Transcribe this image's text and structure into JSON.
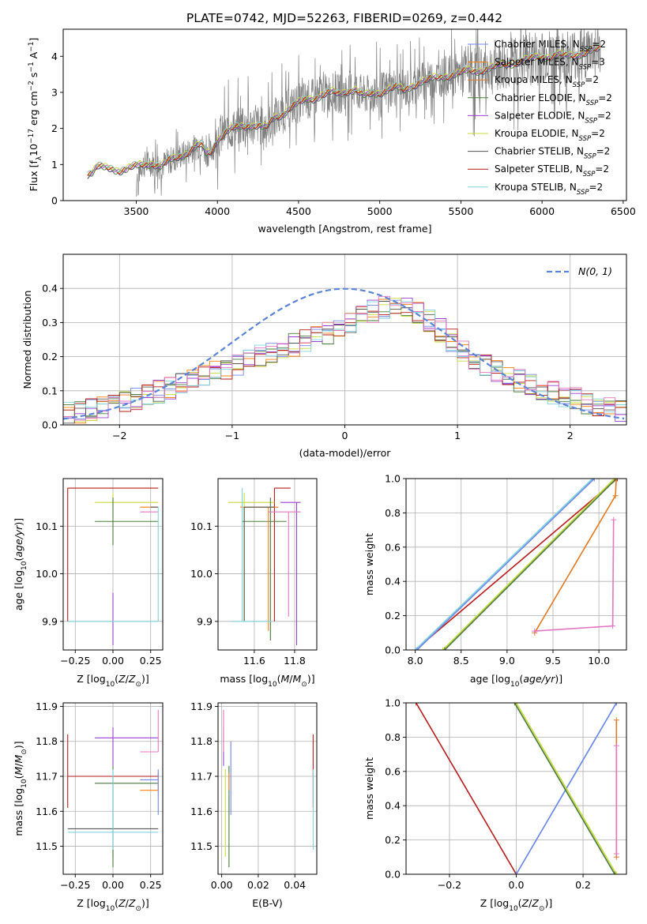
{
  "title": "PLATE=0742, MJD=52263, FIBERID=0269, z=0.442",
  "colors": {
    "c1": "#6f87e8",
    "c2": "#ff7f0e",
    "c3": "#e07a24",
    "c4": "#4a7a3c",
    "c5": "#9b3fcf",
    "c6": "#c8dc3c",
    "c7": "#555555",
    "c8": "#b71c1c",
    "c9": "#7fd4dc",
    "pink": "#e377c2",
    "grey": "#808080",
    "norm": "#5b84d6"
  },
  "chart_data": [
    {
      "id": "spectrum",
      "type": "line",
      "xlabel": "wavelength [Angstrom, rest frame]",
      "ylabel": "Flux [f_λ 10^-17 erg cm^-2 s^-1 A^-1]",
      "xlim": [
        3050,
        6520
      ],
      "ylim": [
        0,
        4.75
      ],
      "xticks": [
        3500,
        4000,
        4500,
        5000,
        5500,
        6000,
        6500
      ],
      "yticks": [
        0,
        1,
        2,
        3,
        4
      ],
      "legend_position": "top-right",
      "legend": [
        {
          "base": "Chabrier MILES, N",
          "sub": "SSP",
          "tail": "=2",
          "color": "#6f87e8"
        },
        {
          "base": "Salpeter MILES, N",
          "sub": "SSP",
          "tail": "=3",
          "color": "#ff7f0e"
        },
        {
          "base": "Kroupa MILES, N",
          "sub": "SSP",
          "tail": "=2",
          "color": "#e07a24"
        },
        {
          "base": "Chabrier ELODIE, N",
          "sub": "SSP",
          "tail": "=2",
          "color": "#4a7a3c"
        },
        {
          "base": "Salpeter ELODIE, N",
          "sub": "SSP",
          "tail": "=2",
          "color": "#9b3fcf"
        },
        {
          "base": "Kroupa ELODIE, N",
          "sub": "SSP",
          "tail": "=2",
          "color": "#c8dc3c"
        },
        {
          "base": "Chabrier STELIB, N",
          "sub": "SSP",
          "tail": "=2",
          "color": "#555555"
        },
        {
          "base": "Salpeter STELIB, N",
          "sub": "SSP",
          "tail": "=2",
          "color": "#b71c1c"
        },
        {
          "base": "Kroupa STELIB, N",
          "sub": "SSP",
          "tail": "=2",
          "color": "#7fd4dc"
        }
      ],
      "model_curve": {
        "x": [
          3200,
          3230,
          3260,
          3300,
          3350,
          3400,
          3450,
          3500,
          3550,
          3600,
          3650,
          3700,
          3750,
          3800,
          3850,
          3900,
          3930,
          3960,
          4000,
          4050,
          4100,
          4150,
          4200,
          4250,
          4300,
          4350,
          4400,
          4450,
          4500,
          4550,
          4600,
          4650,
          4700,
          4750,
          4800,
          4850,
          4900,
          4950,
          5000,
          5050,
          5100,
          5150,
          5200,
          5250,
          5300,
          5350,
          5400,
          5450,
          5500,
          5550,
          5600,
          5650,
          5700,
          5750,
          5800,
          5850,
          5900,
          5950,
          6000,
          6050,
          6100,
          6150,
          6200,
          6250,
          6300,
          6360
        ],
        "y": [
          0.75,
          0.8,
          0.95,
          0.9,
          0.88,
          0.85,
          0.9,
          0.95,
          1.0,
          1.05,
          0.95,
          1.1,
          1.2,
          1.3,
          1.45,
          1.55,
          1.3,
          1.35,
          1.7,
          1.9,
          2.0,
          2.05,
          2.1,
          2.1,
          2.0,
          2.3,
          2.4,
          2.6,
          2.7,
          2.8,
          2.85,
          2.95,
          3.0,
          2.95,
          3.05,
          3.1,
          2.9,
          2.95,
          3.0,
          3.1,
          3.15,
          3.05,
          3.2,
          3.3,
          3.35,
          3.4,
          3.45,
          3.5,
          3.55,
          3.6,
          3.6,
          3.65,
          3.7,
          3.75,
          3.8,
          3.85,
          3.9,
          3.95,
          4.0,
          4.0,
          4.05,
          4.0,
          4.05,
          4.1,
          4.15,
          4.2
        ]
      },
      "data_noise": "grey observed spectrum, 3500–6360 Å, scatter up to ±1.5"
    },
    {
      "id": "residuals",
      "type": "step",
      "xlabel": "(data-model)/error",
      "ylabel": "Normed distribution",
      "xlim": [
        -2.5,
        2.5
      ],
      "ylim": [
        0,
        0.5
      ],
      "xticks": [
        -2,
        -1,
        0,
        1,
        2
      ],
      "yticks": [
        0.0,
        0.1,
        0.2,
        0.3,
        0.4
      ],
      "grid": true,
      "legend_position": "top-right",
      "normal_label": "N(0, 1)",
      "normal_curve": {
        "mean": 0,
        "sigma": 1,
        "color": "#5b84d6",
        "style": "dashed"
      }
    },
    {
      "id": "age_vs_Z",
      "type": "errorbar",
      "xlabel": "Z [log10(Z/Z⊙)]",
      "ylabel": "age  [log10(age/yr)]",
      "xlim": [
        -0.33,
        0.33
      ],
      "ylim": [
        9.84,
        10.2
      ],
      "xticks": [
        -0.25,
        0.0,
        0.25
      ],
      "xtick_labels": [
        "−0.25",
        "0.00",
        "0.25"
      ],
      "yticks": [
        9.9,
        10.0,
        10.1
      ],
      "grid": true,
      "points": [
        {
          "x": -0.3,
          "y": 10.18,
          "xerr": [
            0,
            0.6
          ],
          "yerr": [
            0.28,
            0
          ],
          "color": "#b71c1c"
        },
        {
          "x": 0.0,
          "y": 10.15,
          "xerr": [
            0.12,
            0.3
          ],
          "yerr": [
            0.03,
            0.02
          ],
          "color": "#c8dc3c"
        },
        {
          "x": 0.0,
          "y": 10.11,
          "xerr": [
            0.12,
            0.3
          ],
          "yerr": [
            0.05,
            0.05
          ],
          "color": "#4a7a3c"
        },
        {
          "x": 0.0,
          "y": 9.96,
          "xerr": [
            0,
            0
          ],
          "yerr": [
            0.11,
            0
          ],
          "color": "#9b3fcf"
        },
        {
          "x": 0.3,
          "y": 10.14,
          "xerr": [
            0.12,
            0
          ],
          "yerr": [
            0,
            0
          ],
          "color": "#ff7f0e"
        },
        {
          "x": 0.3,
          "y": 10.13,
          "xerr": [
            0.12,
            0
          ],
          "yerr": [
            0,
            0
          ],
          "color": "#e377c2"
        },
        {
          "x": 0.3,
          "y": 10.14,
          "xerr": [
            0.05,
            0
          ],
          "yerr": [
            0,
            0
          ],
          "color": "#555555"
        },
        {
          "x": 0.3,
          "y": 9.9,
          "xerr": [
            0.6,
            0
          ],
          "yerr": [
            0,
            0.24
          ],
          "color": "#7fd4dc"
        }
      ]
    },
    {
      "id": "age_vs_mass",
      "type": "errorbar",
      "xlabel": "mass [log10(M/M⊙)]",
      "ylabel": "",
      "xlim": [
        11.42,
        11.91
      ],
      "ylim": [
        9.84,
        10.2
      ],
      "xticks": [
        11.6,
        11.8
      ],
      "xtick_labels": [
        "11.6",
        "11.8"
      ],
      "yticks": [
        9.9,
        10.0,
        10.1
      ],
      "grid": true,
      "points": [
        {
          "x": 11.7,
          "y": 10.18,
          "xerr": [
            0,
            0.08
          ],
          "yerr": [
            0.28,
            0
          ],
          "color": "#b71c1c"
        },
        {
          "x": 11.55,
          "y": 10.15,
          "xerr": [
            0.08,
            0.15
          ],
          "yerr": [
            0.25,
            0.02
          ],
          "color": "#c8dc3c"
        },
        {
          "x": 11.68,
          "y": 10.11,
          "xerr": [
            0.14,
            0.08
          ],
          "yerr": [
            0.25,
            0.05
          ],
          "color": "#4a7a3c"
        },
        {
          "x": 11.81,
          "y": 10.15,
          "xerr": [
            0.08,
            0.02
          ],
          "yerr": [
            0.3,
            0
          ],
          "color": "#9b3fcf"
        },
        {
          "x": 11.67,
          "y": 10.14,
          "xerr": [
            0.14,
            0.05
          ],
          "yerr": [
            0.26,
            0
          ],
          "color": "#ff7f0e"
        },
        {
          "x": 11.77,
          "y": 10.13,
          "xerr": [
            0.1,
            0.06
          ],
          "yerr": [
            0.22,
            0
          ],
          "color": "#e377c2"
        },
        {
          "x": 11.55,
          "y": 10.14,
          "xerr": [
            0,
            0.15
          ],
          "yerr": [
            0.24,
            0
          ],
          "color": "#555555"
        },
        {
          "x": 11.54,
          "y": 9.9,
          "xerr": [
            0.05,
            0.15
          ],
          "yerr": [
            0,
            0.28
          ],
          "color": "#7fd4dc"
        }
      ]
    },
    {
      "id": "cumulative_age",
      "type": "line",
      "xlabel": "age  [log10(age/yr)]",
      "ylabel": "mass weight",
      "xlim": [
        7.9,
        10.3
      ],
      "ylim": [
        0,
        1
      ],
      "xticks": [
        8.0,
        8.5,
        9.0,
        9.5,
        10.0
      ],
      "yticks": [
        0.0,
        0.2,
        0.4,
        0.6,
        0.8,
        1.0
      ],
      "grid": true,
      "series": [
        {
          "x": [
            8.0,
            10.2
          ],
          "y": [
            0,
            1
          ],
          "color": "#b71c1c"
        },
        {
          "x": [
            8.0,
            9.93
          ],
          "y": [
            0,
            1
          ],
          "color": "#7fd4dc"
        },
        {
          "x": [
            8.02,
            9.95
          ],
          "y": [
            0,
            1
          ],
          "color": "#6f87e8"
        },
        {
          "x": [
            8.3,
            10.17
          ],
          "y": [
            0,
            1
          ],
          "color": "#c8dc3c"
        },
        {
          "x": [
            8.32,
            10.19
          ],
          "y": [
            0,
            1
          ],
          "color": "#4a7a3c"
        },
        {
          "x": [
            9.3,
            10.18,
            10.19
          ],
          "y": [
            0.1,
            0.9,
            1.0
          ],
          "color": "#e07a24"
        },
        {
          "x": [
            9.3,
            10.15,
            10.16
          ],
          "y": [
            0.11,
            0.14,
            0.76
          ],
          "color": "#e377c2"
        }
      ]
    },
    {
      "id": "mass_vs_Z",
      "type": "errorbar",
      "xlabel": "Z [log10(Z/Z⊙)]",
      "ylabel": "mass [log10(M/M⊙)]",
      "xlim": [
        -0.33,
        0.33
      ],
      "ylim": [
        11.42,
        11.91
      ],
      "xticks": [
        -0.25,
        0.0,
        0.25
      ],
      "xtick_labels": [
        "−0.25",
        "0.00",
        "0.25"
      ],
      "yticks": [
        11.5,
        11.6,
        11.7,
        11.8,
        11.9
      ],
      "grid": true,
      "points": [
        {
          "x": -0.3,
          "y": 11.7,
          "xerr": [
            0,
            0.6
          ],
          "yerr": [
            0.09,
            0.12
          ],
          "color": "#b71c1c"
        },
        {
          "x": 0.0,
          "y": 11.55,
          "xerr": [
            0.3,
            0.3
          ],
          "yerr": [
            0.08,
            0.15
          ],
          "color": "#555555"
        },
        {
          "x": 0.0,
          "y": 11.68,
          "xerr": [
            0.12,
            0.3
          ],
          "yerr": [
            0.24,
            0.05
          ],
          "color": "#4a7a3c"
        },
        {
          "x": 0.0,
          "y": 11.81,
          "xerr": [
            0.12,
            0.3
          ],
          "yerr": [
            0.08,
            0.03
          ],
          "color": "#9b3fcf"
        },
        {
          "x": 0.0,
          "y": 11.54,
          "xerr": [
            0.3,
            0.3
          ],
          "yerr": [
            0.05,
            0.18
          ],
          "color": "#7fd4dc"
        },
        {
          "x": 0.3,
          "y": 11.77,
          "xerr": [
            0.12,
            0
          ],
          "yerr": [
            0,
            0.12
          ],
          "color": "#e377c2"
        },
        {
          "x": 0.3,
          "y": 11.66,
          "xerr": [
            0.12,
            0
          ],
          "yerr": [
            0,
            0.05
          ],
          "color": "#ff7f0e"
        },
        {
          "x": 0.3,
          "y": 11.69,
          "xerr": [
            0.12,
            0
          ],
          "yerr": [
            0.1,
            0.03
          ],
          "color": "#6f87e8"
        }
      ]
    },
    {
      "id": "mass_vs_EBV",
      "type": "errorbar",
      "xlabel": "E(B-V)",
      "ylabel": "",
      "xlim": [
        -0.002,
        0.052
      ],
      "ylim": [
        11.42,
        11.91
      ],
      "xticks": [
        0.0,
        0.02,
        0.04
      ],
      "xtick_labels": [
        "0.00",
        "0.02",
        "0.04"
      ],
      "yticks": [
        11.5,
        11.6,
        11.7,
        11.8,
        11.9
      ],
      "grid": true,
      "points": [
        {
          "x": 0.05,
          "y": 11.7,
          "xerr": [
            0,
            0
          ],
          "yerr": [
            0.09,
            0.12
          ],
          "color": "#b71c1c"
        },
        {
          "x": 0.05,
          "y": 11.54,
          "xerr": [
            0,
            0
          ],
          "yerr": [
            0.05,
            0.18
          ],
          "color": "#7fd4dc"
        },
        {
          "x": 0.001,
          "y": 11.81,
          "xerr": [
            0,
            0
          ],
          "yerr": [
            0.08,
            0.03
          ],
          "color": "#9b3fcf"
        },
        {
          "x": 0.001,
          "y": 11.77,
          "xerr": [
            0,
            0
          ],
          "yerr": [
            0,
            0.12
          ],
          "color": "#e377c2"
        },
        {
          "x": 0.002,
          "y": 11.55,
          "xerr": [
            0,
            0
          ],
          "yerr": [
            0.08,
            0.17
          ],
          "color": "#c8dc3c"
        },
        {
          "x": 0.004,
          "y": 11.68,
          "xerr": [
            0,
            0
          ],
          "yerr": [
            0.24,
            0.05
          ],
          "color": "#4a7a3c"
        },
        {
          "x": 0.005,
          "y": 11.69,
          "xerr": [
            0,
            0
          ],
          "yerr": [
            0.1,
            0.11
          ],
          "color": "#6f87e8"
        },
        {
          "x": 0.004,
          "y": 11.66,
          "xerr": [
            0,
            0
          ],
          "yerr": [
            0,
            0.05
          ],
          "color": "#ff7f0e"
        }
      ]
    },
    {
      "id": "cumulative_Z",
      "type": "line",
      "xlabel": "Z [log10(Z/Z⊙)]",
      "ylabel": "mass weight",
      "xlim": [
        -0.33,
        0.33
      ],
      "ylim": [
        0,
        1
      ],
      "xticks": [
        -0.2,
        0.0,
        0.2
      ],
      "xtick_labels": [
        "−0.2",
        "0.0",
        "0.2"
      ],
      "yticks": [
        0.0,
        0.2,
        0.4,
        0.6,
        0.8,
        1.0
      ],
      "grid": true,
      "series": [
        {
          "x": [
            -0.3,
            0.0
          ],
          "y": [
            1,
            0
          ],
          "color": "#b71c1c"
        },
        {
          "x": [
            0.0,
            0.3
          ],
          "y": [
            0,
            1
          ],
          "color": "#7fd4dc"
        },
        {
          "x": [
            0.0,
            0.3
          ],
          "y": [
            0,
            1
          ],
          "color": "#6f87e8"
        },
        {
          "x": [
            0.0,
            0.3
          ],
          "y": [
            1,
            0
          ],
          "color": "#c8dc3c"
        },
        {
          "x": [
            -0.005,
            0.295
          ],
          "y": [
            1,
            0
          ],
          "color": "#4a7a3c"
        },
        {
          "x": [
            0.3,
            0.3
          ],
          "y": [
            0.1,
            0.9
          ],
          "color": "#e07a24"
        },
        {
          "x": [
            0.3,
            0.3
          ],
          "y": [
            0.12,
            0.75
          ],
          "color": "#e377c2"
        }
      ]
    }
  ]
}
